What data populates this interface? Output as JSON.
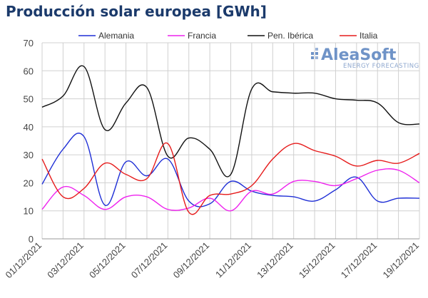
{
  "chart_data": {
    "type": "line",
    "title": "Producción solar europea [GWh]",
    "x": [
      "01/12/2021",
      "02/12/2021",
      "03/12/2021",
      "04/12/2021",
      "05/12/2021",
      "06/12/2021",
      "07/12/2021",
      "08/12/2021",
      "09/12/2021",
      "10/12/2021",
      "11/12/2021",
      "12/12/2021",
      "13/12/2021",
      "14/12/2021",
      "15/12/2021",
      "16/12/2021",
      "17/12/2021",
      "18/12/2021",
      "19/12/2021"
    ],
    "x_tick_labels": [
      "01/12/2021",
      "03/12/2021",
      "05/12/2021",
      "07/12/2021",
      "09/12/2021",
      "11/12/2021",
      "13/12/2021",
      "15/12/2021",
      "17/12/2021",
      "19/12/2021"
    ],
    "ylim": [
      0,
      70
    ],
    "y_ticks": [
      0,
      10,
      20,
      30,
      40,
      50,
      60,
      70
    ],
    "grid": true,
    "legend_position": "top",
    "series": [
      {
        "name": "Alemania",
        "color": "#1f2fd6",
        "values": [
          19.5,
          32,
          36.5,
          12,
          27.5,
          22.5,
          28.5,
          13.5,
          12.5,
          20.5,
          17,
          15.5,
          15,
          13.5,
          17.5,
          22,
          13.5,
          14.5,
          14.5
        ]
      },
      {
        "name": "Francia",
        "color": "#ee22ee",
        "values": [
          10.5,
          18.5,
          15.5,
          10.5,
          15,
          15,
          10.5,
          11,
          14.5,
          10,
          17,
          16,
          20.5,
          20.5,
          19,
          21.5,
          24.5,
          24.5,
          20
        ]
      },
      {
        "name": "Pen. Ibérica",
        "color": "#111111",
        "values": [
          47,
          51,
          61.5,
          39,
          48.5,
          54,
          29.5,
          36,
          32,
          23,
          53.5,
          52.5,
          52,
          52,
          50,
          49.5,
          48.5,
          41.5,
          41
        ]
      },
      {
        "name": "Italia",
        "color": "#e61b1b",
        "values": [
          28.5,
          15,
          18,
          27,
          23,
          21.5,
          34,
          9.5,
          15.5,
          16,
          19,
          28.5,
          34,
          31.5,
          29.5,
          26,
          28,
          27,
          30.5
        ]
      }
    ]
  },
  "logo": {
    "name": "AleaSoft",
    "tagline": "ENERGY FORECASTING"
  }
}
